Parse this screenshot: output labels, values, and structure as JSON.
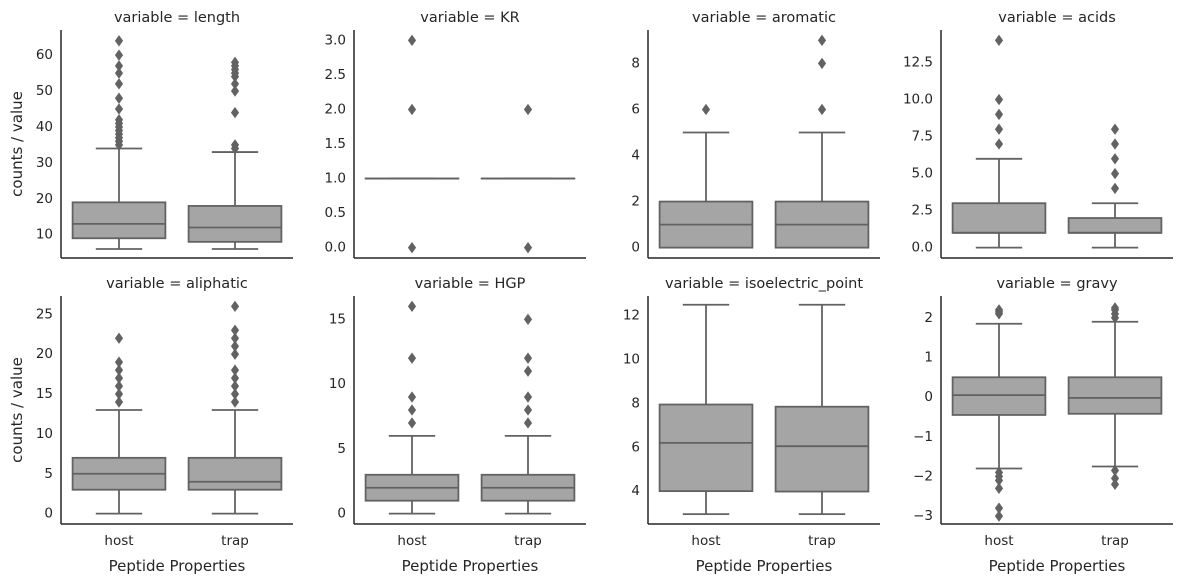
{
  "figure": {
    "xlabel": "Peptide Properties",
    "ylabel": "counts / value",
    "box_color": "#a5a5a5",
    "line_color": "#626262",
    "axis_color": "#262626"
  },
  "chart_data": [
    {
      "type": "box",
      "title": "variable = length",
      "categories": [
        "host",
        "trap"
      ],
      "ylim": [
        3.5,
        67
      ],
      "yticks": [
        10,
        20,
        30,
        40,
        50,
        60
      ],
      "ytick_labels": [
        "10",
        "20",
        "30",
        "40",
        "50",
        "60"
      ],
      "boxes": [
        {
          "name": "host",
          "whislo": 6,
          "q1": 9,
          "med": 13,
          "q3": 19,
          "whishi": 34,
          "fliers": [
            35,
            36,
            37,
            38,
            39,
            40,
            41,
            42,
            45,
            48,
            52,
            55,
            57,
            60,
            64
          ]
        },
        {
          "name": "trap",
          "whislo": 6,
          "q1": 8,
          "med": 12,
          "q3": 18,
          "whishi": 33,
          "fliers": [
            34,
            35,
            44,
            50,
            52,
            54,
            55,
            56,
            57,
            58
          ]
        }
      ]
    },
    {
      "type": "box",
      "title": "variable = KR",
      "categories": [
        "host",
        "trap"
      ],
      "ylim": [
        -0.15,
        3.15
      ],
      "yticks": [
        0,
        0.5,
        1,
        1.5,
        2,
        2.5,
        3
      ],
      "ytick_labels": [
        "0.0",
        "0.5",
        "1.0",
        "1.5",
        "2.0",
        "2.5",
        "3.0"
      ],
      "boxes": [
        {
          "name": "host",
          "whislo": 1,
          "q1": 1,
          "med": 1,
          "q3": 1,
          "whishi": 1,
          "fliers": [
            0,
            2,
            3
          ]
        },
        {
          "name": "trap",
          "whislo": 1,
          "q1": 1,
          "med": 1,
          "q3": 1,
          "whishi": 1,
          "fliers": [
            0,
            2
          ]
        }
      ]
    },
    {
      "type": "box",
      "title": "variable = aromatic",
      "categories": [
        "host",
        "trap"
      ],
      "ylim": [
        -0.45,
        9.45
      ],
      "yticks": [
        0,
        2,
        4,
        6,
        8
      ],
      "ytick_labels": [
        "0",
        "2",
        "4",
        "6",
        "8"
      ],
      "boxes": [
        {
          "name": "host",
          "whislo": 0,
          "q1": 0,
          "med": 1,
          "q3": 2,
          "whishi": 5,
          "fliers": [
            6
          ]
        },
        {
          "name": "trap",
          "whislo": 0,
          "q1": 0,
          "med": 1,
          "q3": 2,
          "whishi": 5,
          "fliers": [
            6,
            8,
            9
          ]
        }
      ]
    },
    {
      "type": "box",
      "title": "variable = acids",
      "categories": [
        "host",
        "trap"
      ],
      "ylim": [
        -0.7,
        14.7
      ],
      "yticks": [
        0,
        2.5,
        5,
        7.5,
        10,
        12.5
      ],
      "ytick_labels": [
        "0.0",
        "2.5",
        "5.0",
        "7.5",
        "10.0",
        "12.5"
      ],
      "boxes": [
        {
          "name": "host",
          "whislo": 0,
          "q1": 1,
          "med": 1,
          "q3": 3,
          "whishi": 6,
          "fliers": [
            7,
            8,
            9,
            10,
            14
          ]
        },
        {
          "name": "trap",
          "whislo": 0,
          "q1": 1,
          "med": 1,
          "q3": 2,
          "whishi": 3,
          "fliers": [
            4,
            5,
            6,
            7,
            8
          ]
        }
      ]
    },
    {
      "type": "box",
      "title": "variable = aliphatic",
      "categories": [
        "host",
        "trap"
      ],
      "ylim": [
        -1.3,
        27.3
      ],
      "yticks": [
        0,
        5,
        10,
        15,
        20,
        25
      ],
      "ytick_labels": [
        "0",
        "5",
        "10",
        "15",
        "20",
        "25"
      ],
      "boxes": [
        {
          "name": "host",
          "whislo": 0,
          "q1": 3,
          "med": 5,
          "q3": 7,
          "whishi": 13,
          "fliers": [
            14,
            15,
            16,
            17,
            18,
            19,
            22
          ]
        },
        {
          "name": "trap",
          "whislo": 0,
          "q1": 3,
          "med": 4,
          "q3": 7,
          "whishi": 13,
          "fliers": [
            14,
            15,
            16,
            17,
            18,
            20,
            21,
            22,
            23,
            26
          ]
        }
      ]
    },
    {
      "type": "box",
      "title": "variable = HGP",
      "categories": [
        "host",
        "trap"
      ],
      "ylim": [
        -0.8,
        16.8
      ],
      "yticks": [
        0,
        5,
        10,
        15
      ],
      "ytick_labels": [
        "0",
        "5",
        "10",
        "15"
      ],
      "boxes": [
        {
          "name": "host",
          "whislo": 0,
          "q1": 1,
          "med": 2,
          "q3": 3,
          "whishi": 6,
          "fliers": [
            7,
            8,
            9,
            12,
            16
          ]
        },
        {
          "name": "trap",
          "whislo": 0,
          "q1": 1,
          "med": 2,
          "q3": 3,
          "whishi": 6,
          "fliers": [
            7,
            8,
            9,
            11,
            12,
            15
          ]
        }
      ]
    },
    {
      "type": "box",
      "title": "variable = isoelectric_point",
      "categories": [
        "host",
        "trap"
      ],
      "ylim": [
        2.5,
        12.9
      ],
      "yticks": [
        4,
        6,
        8,
        10,
        12
      ],
      "ytick_labels": [
        "4",
        "6",
        "8",
        "10",
        "12"
      ],
      "boxes": [
        {
          "name": "host",
          "whislo": 2.95,
          "q1": 4,
          "med": 6.2,
          "q3": 7.95,
          "whishi": 12.5,
          "fliers": []
        },
        {
          "name": "trap",
          "whislo": 2.95,
          "q1": 3.98,
          "med": 6.05,
          "q3": 7.85,
          "whishi": 12.5,
          "fliers": []
        }
      ]
    },
    {
      "type": "box",
      "title": "variable = gravy",
      "categories": [
        "host",
        "trap"
      ],
      "ylim": [
        -3.2,
        2.55
      ],
      "yticks": [
        -3,
        -2,
        -1,
        0,
        1,
        2
      ],
      "ytick_labels": [
        "−3",
        "−2",
        "−1",
        "0",
        "1",
        "2"
      ],
      "boxes": [
        {
          "name": "host",
          "whislo": -1.8,
          "q1": -0.45,
          "med": 0.05,
          "q3": 0.5,
          "whishi": 1.85,
          "fliers": [
            -1.9,
            -2.0,
            -2.1,
            -2.3,
            -2.8,
            -3.0,
            2.1,
            2.15,
            2.2
          ]
        },
        {
          "name": "trap",
          "whislo": -1.75,
          "q1": -0.42,
          "med": -0.02,
          "q3": 0.5,
          "whishi": 1.9,
          "fliers": [
            -1.85,
            -2.05,
            -2.2,
            2.0,
            2.1,
            2.2,
            2.25
          ]
        }
      ]
    }
  ]
}
